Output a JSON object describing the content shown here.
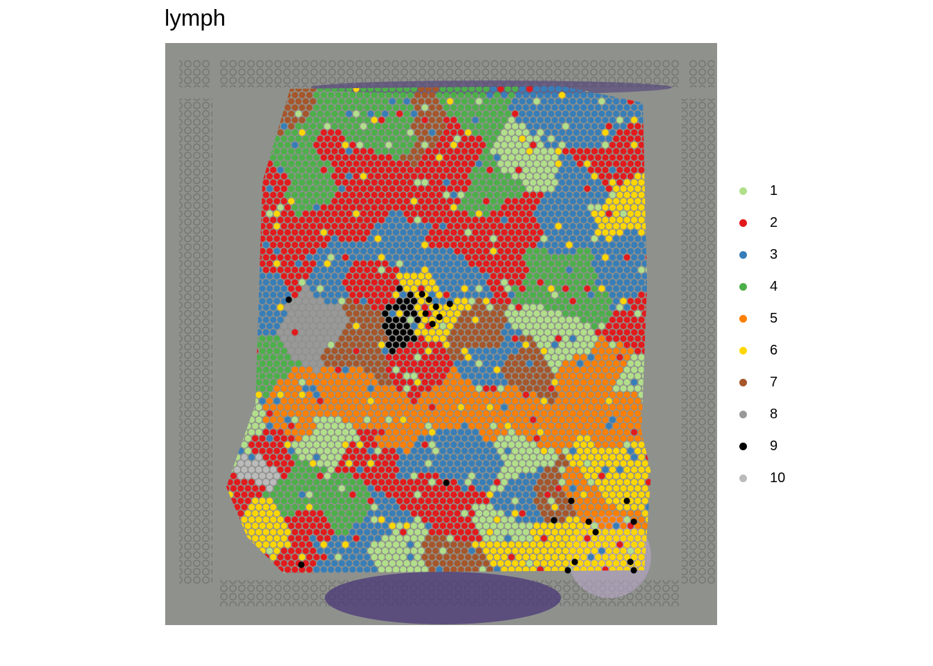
{
  "title": "lymph",
  "legend": {
    "items": [
      {
        "label": "1",
        "color": "#B2DF8A"
      },
      {
        "label": "2",
        "color": "#E31A1C"
      },
      {
        "label": "3",
        "color": "#377EB8"
      },
      {
        "label": "4",
        "color": "#4DAF4A"
      },
      {
        "label": "5",
        "color": "#FF7F00"
      },
      {
        "label": "6",
        "color": "#FFD700"
      },
      {
        "label": "7",
        "color": "#A6562A"
      },
      {
        "label": "8",
        "color": "#999999"
      },
      {
        "label": "9",
        "color": "#000000"
      },
      {
        "label": "10",
        "color": "#BBBBBB"
      }
    ]
  },
  "colors": {
    "background_tissue_image": "#8f918d",
    "fiducial_frame": "#a7a8a4",
    "tissue_stain": "#5a3f86"
  }
}
